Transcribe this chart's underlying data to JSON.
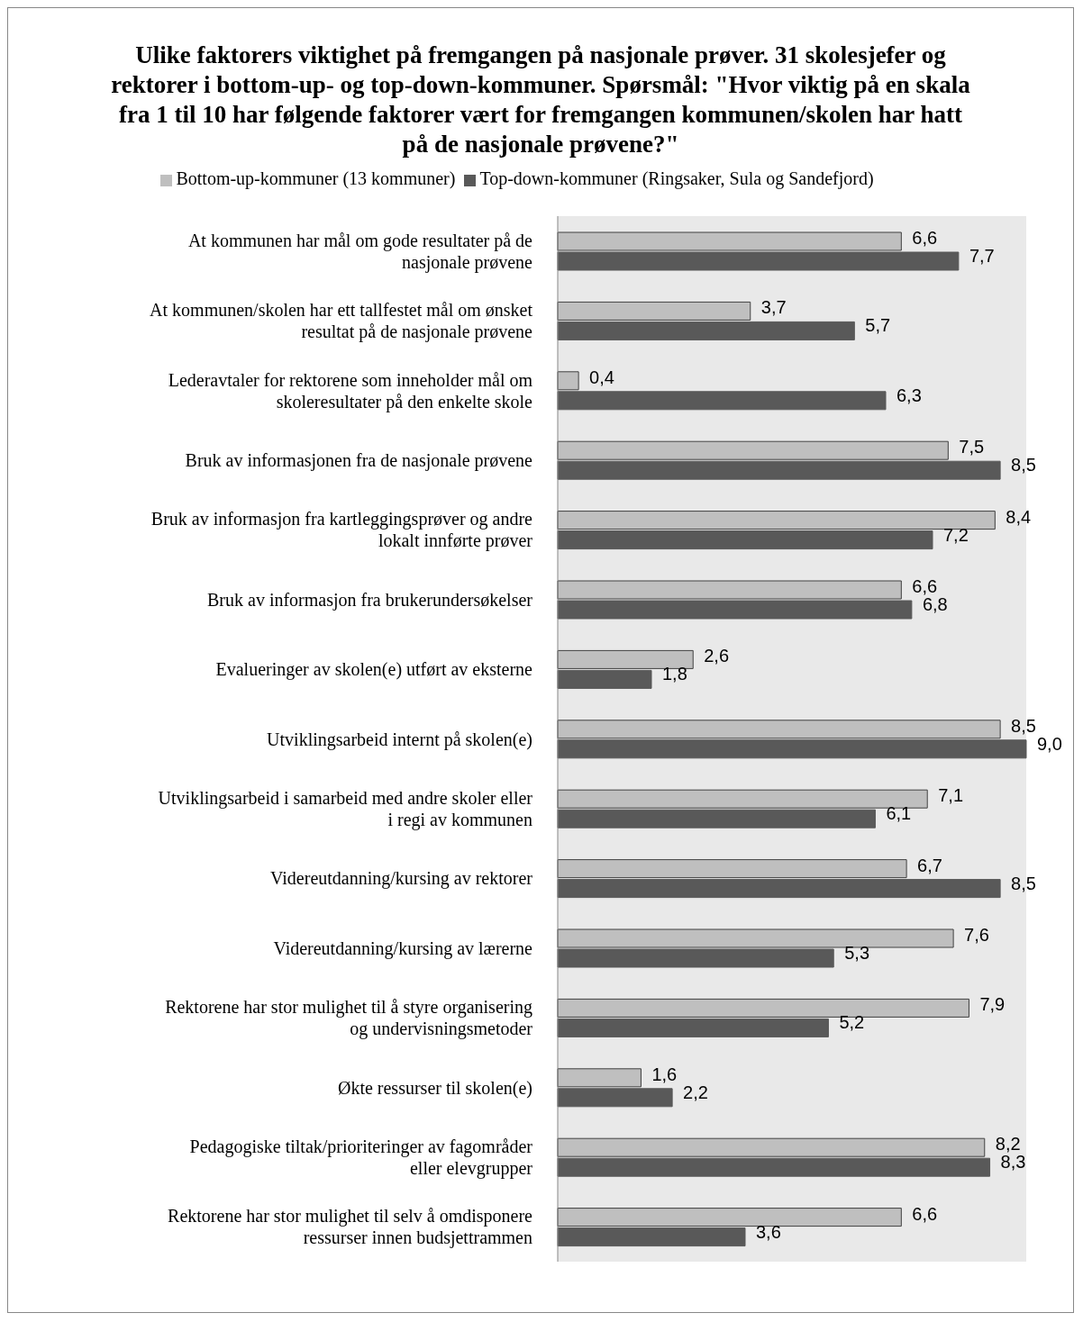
{
  "chart_data": {
    "type": "bar",
    "orientation": "horizontal",
    "title": "Ulike faktorers viktighet på fremgangen på nasjonale prøver. 31 skolesjefer og rektorer i bottom-up- og top-down-kommuner. Spørsmål: \"Hvor viktig på en skala fra 1 til 10 har følgende faktorer vært for fremgangen kommunen/skolen har hatt på de nasjonale prøvene?\"",
    "categories": [
      "At kommunen har mål om gode resultater på de nasjonale prøvene",
      "At kommunen/skolen har ett tallfestet mål om ønsket resultat på de nasjonale prøvene",
      "Lederavtaler for rektorene som inneholder mål om skoleresultater på den enkelte skole",
      "Bruk av informasjonen fra de nasjonale prøvene",
      "Bruk av informasjon fra kartleggingsprøver og andre lokalt innførte prøver",
      "Bruk av informasjon fra brukerundersøkelser",
      "Evalueringer av skolen(e) utført av eksterne",
      "Utviklingsarbeid internt på skolen(e)",
      "Utviklingsarbeid i samarbeid med andre skoler eller i regi av kommunen",
      "Videreutdanning/kursing av rektorer",
      "Videreutdanning/kursing av lærerne",
      "Rektorene har stor mulighet til å styre organisering og undervisningsmetoder",
      "Økte ressurser til skolen(e)",
      "Pedagogiske tiltak/prioriteringer av fagområder eller elevgrupper",
      "Rektorene har stor mulighet til selv å omdisponere ressurser innen budsjettrammen"
    ],
    "series": [
      {
        "name": "Bottom-up-kommuner (13 kommuner)",
        "color": "#bfbfbf",
        "values": [
          6.6,
          3.7,
          0.4,
          7.5,
          8.4,
          6.6,
          2.6,
          8.5,
          7.1,
          6.7,
          7.6,
          7.9,
          1.6,
          8.2,
          6.6
        ],
        "value_labels": [
          "6,6",
          "3,7",
          "0,4",
          "7,5",
          "8,4",
          "6,6",
          "2,6",
          "8,5",
          "7,1",
          "6,7",
          "7,6",
          "7,9",
          "1,6",
          "8,2",
          "6,6"
        ]
      },
      {
        "name": "Top-down-kommuner (Ringsaker, Sula og Sandefjord)",
        "color": "#595959",
        "values": [
          7.7,
          5.7,
          6.3,
          8.5,
          7.2,
          6.8,
          1.8,
          9.0,
          6.1,
          8.5,
          5.3,
          5.2,
          2.2,
          8.3,
          3.6
        ],
        "value_labels": [
          "7,7",
          "5,7",
          "6,3",
          "8,5",
          "7,2",
          "6,8",
          "1,8",
          "9,0",
          "6,1",
          "8,5",
          "5,3",
          "5,2",
          "2,2",
          "8,3",
          "3,6"
        ]
      }
    ],
    "legend": "top",
    "grid": false
  }
}
